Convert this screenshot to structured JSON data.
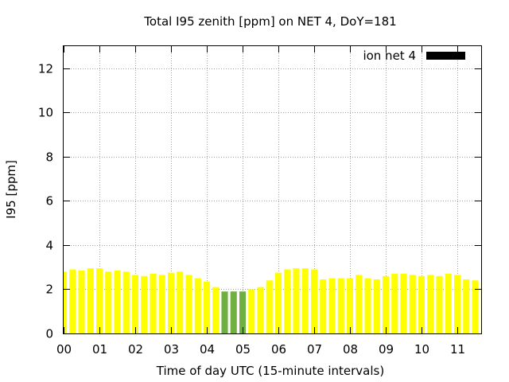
{
  "chart_data": {
    "type": "bar",
    "title": "Total I95 zenith [ppm] on NET 4, DoY=181",
    "xlabel": "Time of day UTC (15-minute intervals)",
    "ylabel": "I95 [ppm]",
    "ylim": [
      0,
      13
    ],
    "xlim_hours": [
      0,
      11.75
    ],
    "yticks": [
      "0",
      "2",
      "4",
      "6",
      "8",
      "10",
      "12"
    ],
    "xticks": [
      "00",
      "01",
      "02",
      "03",
      "04",
      "05",
      "06",
      "07",
      "08",
      "09",
      "10",
      "11"
    ],
    "grid": true,
    "legend": {
      "position": "top-right",
      "label": "ion net 4",
      "color": "#000000"
    },
    "colors": {
      "normal": "#ffff00",
      "highlight": "#70b040"
    },
    "series": [
      {
        "name": "ion net 4",
        "x_hours": [
          0.0,
          0.25,
          0.5,
          0.75,
          1.0,
          1.25,
          1.5,
          1.75,
          2.0,
          2.25,
          2.5,
          2.75,
          3.0,
          3.25,
          3.5,
          3.75,
          4.0,
          4.25,
          4.5,
          4.75,
          5.0,
          5.25,
          5.5,
          5.75,
          6.0,
          6.25,
          6.5,
          6.75,
          7.0,
          7.25,
          7.5,
          7.75,
          8.0,
          8.25,
          8.5,
          8.75,
          9.0,
          9.25,
          9.5,
          9.75,
          10.0,
          10.25,
          10.5,
          10.75,
          11.0,
          11.25,
          11.5,
          11.75
        ],
        "values": [
          2.8,
          2.9,
          2.85,
          2.95,
          2.95,
          2.8,
          2.85,
          2.8,
          2.65,
          2.6,
          2.7,
          2.65,
          2.75,
          2.8,
          2.65,
          2.5,
          2.35,
          2.1,
          1.9,
          1.9,
          1.9,
          2.0,
          2.1,
          2.4,
          2.75,
          2.9,
          2.95,
          2.95,
          2.9,
          2.45,
          2.5,
          2.5,
          2.5,
          2.65,
          2.5,
          2.45,
          2.6,
          2.7,
          2.7,
          2.65,
          2.6,
          2.65,
          2.6,
          2.7,
          2.65,
          2.45,
          2.4,
          2.3
        ],
        "highlight": [
          false,
          false,
          false,
          false,
          false,
          false,
          false,
          false,
          false,
          false,
          false,
          false,
          false,
          false,
          false,
          false,
          false,
          false,
          true,
          true,
          true,
          false,
          false,
          false,
          false,
          false,
          false,
          false,
          false,
          false,
          false,
          false,
          false,
          false,
          false,
          false,
          false,
          false,
          false,
          false,
          false,
          false,
          false,
          false,
          false,
          false,
          false,
          false
        ]
      }
    ]
  }
}
